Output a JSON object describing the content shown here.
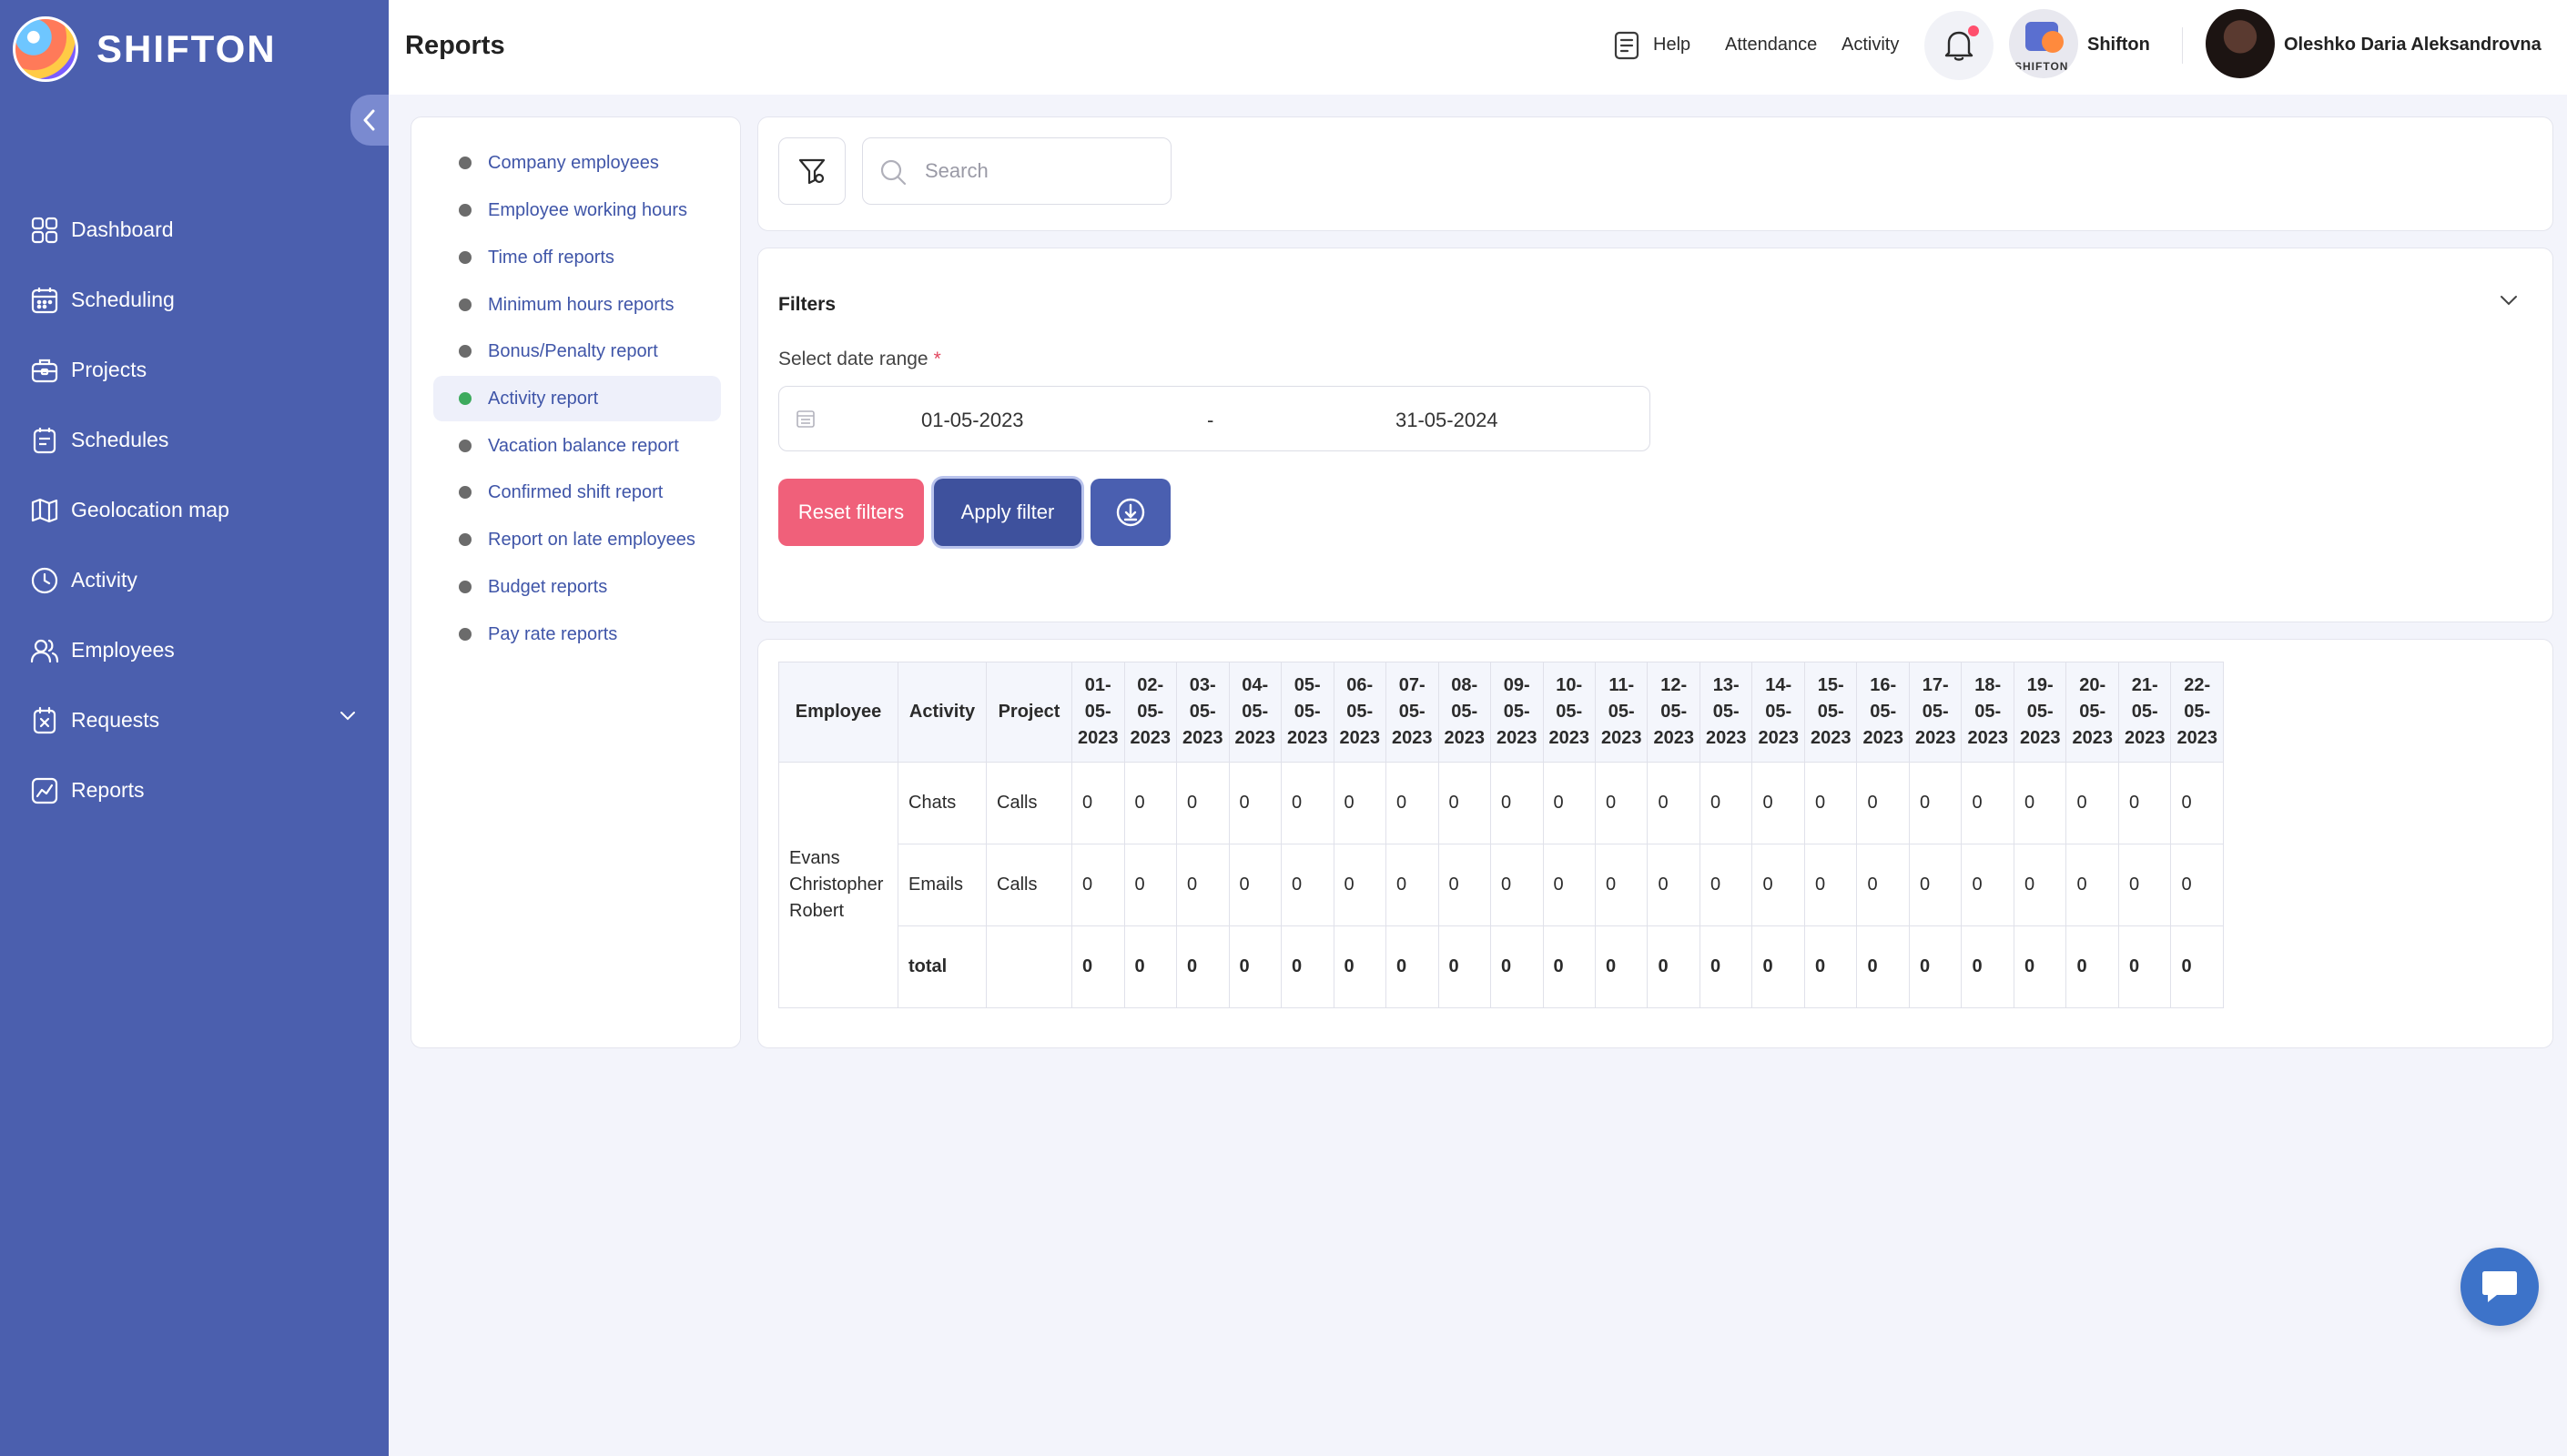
{
  "brand": {
    "name": "SHIFTON"
  },
  "sidebar": {
    "items": [
      {
        "label": "Dashboard",
        "icon": "dashboard-icon"
      },
      {
        "label": "Scheduling",
        "icon": "calendar-icon"
      },
      {
        "label": "Projects",
        "icon": "briefcase-icon"
      },
      {
        "label": "Schedules",
        "icon": "schedule-icon"
      },
      {
        "label": "Geolocation map",
        "icon": "map-icon"
      },
      {
        "label": "Activity",
        "icon": "clock-icon"
      },
      {
        "label": "Employees",
        "icon": "users-icon"
      },
      {
        "label": "Requests",
        "icon": "request-icon"
      },
      {
        "label": "Reports",
        "icon": "chart-icon"
      }
    ]
  },
  "header": {
    "title": "Reports",
    "help": "Help",
    "attendance": "Attendance",
    "activity": "Activity",
    "company_name": "Shifton",
    "company_logo_text": "SHIFTON",
    "user_name": "Oleshko Daria Aleksandrovna"
  },
  "reports": {
    "items": [
      "Company employees",
      "Employee working hours",
      "Time off reports",
      "Minimum hours reports",
      "Bonus/Penalty report",
      "Activity report",
      "Vacation balance report",
      "Confirmed shift report",
      "Report on late employees",
      "Budget reports",
      "Pay rate reports"
    ],
    "active": "Activity report"
  },
  "search": {
    "placeholder": "Search",
    "value": ""
  },
  "filters": {
    "title": "Filters",
    "date_label": "Select date range",
    "required_mark": "*",
    "date_from": "01-05-2023",
    "date_separator": "-",
    "date_to": "31-05-2024",
    "reset_label": "Reset filters",
    "apply_label": "Apply filter"
  },
  "table": {
    "headers": {
      "employee": "Employee",
      "activity": "Activity",
      "project": "Project",
      "dates": [
        "01-05-2023",
        "02-05-2023",
        "03-05-2023",
        "04-05-2023",
        "05-05-2023",
        "06-05-2023",
        "07-05-2023",
        "08-05-2023",
        "09-05-2023",
        "10-05-2023",
        "11-05-2023",
        "12-05-2023",
        "13-05-2023",
        "14-05-2023",
        "15-05-2023",
        "16-05-2023",
        "17-05-2023",
        "18-05-2023",
        "19-05-2023",
        "20-05-2023",
        "21-05-2023",
        "22-05-2023"
      ]
    },
    "employee": "Evans Christopher Robert",
    "rows": [
      {
        "activity": "Chats",
        "project": "Calls",
        "values": [
          0,
          0,
          0,
          0,
          0,
          0,
          0,
          0,
          0,
          0,
          0,
          0,
          0,
          0,
          0,
          0,
          0,
          0,
          0,
          0,
          0,
          0
        ]
      },
      {
        "activity": "Emails",
        "project": "Calls",
        "values": [
          0,
          0,
          0,
          0,
          0,
          0,
          0,
          0,
          0,
          0,
          0,
          0,
          0,
          0,
          0,
          0,
          0,
          0,
          0,
          0,
          0,
          0
        ]
      }
    ],
    "total": {
      "label": "total",
      "values": [
        0,
        0,
        0,
        0,
        0,
        0,
        0,
        0,
        0,
        0,
        0,
        0,
        0,
        0,
        0,
        0,
        0,
        0,
        0,
        0,
        0,
        0
      ]
    }
  },
  "colors": {
    "sidebar_bg": "#4b5fae",
    "accent": "#3e519d",
    "danger": "#f0607a",
    "link": "#3f55a8",
    "active_dot": "#3daa5d"
  }
}
